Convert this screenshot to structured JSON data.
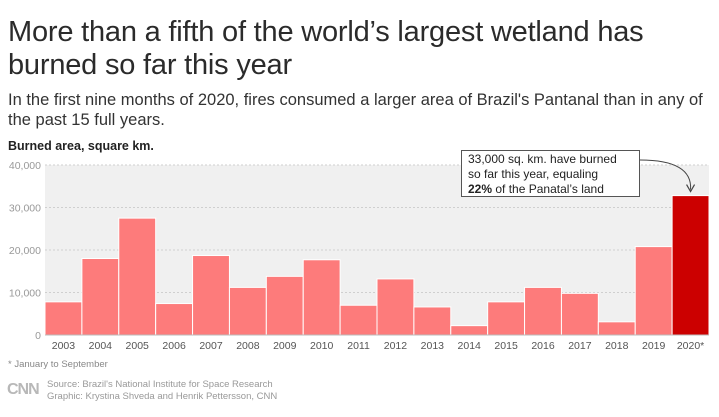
{
  "title": "More than a fifth of the world’s largest wetland has burned so far this year",
  "subtitle": "In the first nine months of 2020, fires consumed a larger area of Brazil's Pantanal than in any of the past 15 full years.",
  "footnote": "* January to September",
  "logo": "CNN",
  "credits": {
    "source": "Source: Brazil's National Institute for Space Research",
    "graphic": "Graphic: Krystina Shveda and Henrik Pettersson, CNN"
  },
  "annotation": {
    "line1": "33,000 sq. km. have burned",
    "line2": "so far this year, equaling",
    "bold": "22%",
    "rest": " of the Panatal’s land"
  },
  "colors": {
    "bar": "#fd7b7b",
    "highlight": "#cc0000",
    "grid": "#cfcfcf",
    "plot_bg": "#f0f0f0"
  },
  "chart_data": {
    "type": "bar",
    "title": "More than a fifth of the world’s largest wetland has burned so far this year",
    "ylabel": "Burned area, square km.",
    "xlabel": "",
    "categories": [
      "2003",
      "2004",
      "2005",
      "2006",
      "2007",
      "2008",
      "2009",
      "2010",
      "2011",
      "2012",
      "2013",
      "2014",
      "2015",
      "2016",
      "2017",
      "2018",
      "2019",
      "2020*"
    ],
    "values": [
      7800,
      18000,
      27500,
      7400,
      18700,
      11200,
      13800,
      17700,
      7000,
      13200,
      6600,
      2200,
      7800,
      11200,
      9800,
      3100,
      20800,
      32800
    ],
    "highlight_index": 17,
    "ylim": [
      0,
      40000
    ],
    "yticks": [
      0,
      10000,
      20000,
      30000,
      40000
    ],
    "ytick_labels": [
      "0",
      "10,000",
      "20,000",
      "30,000",
      "40,000"
    ],
    "grid": true
  }
}
